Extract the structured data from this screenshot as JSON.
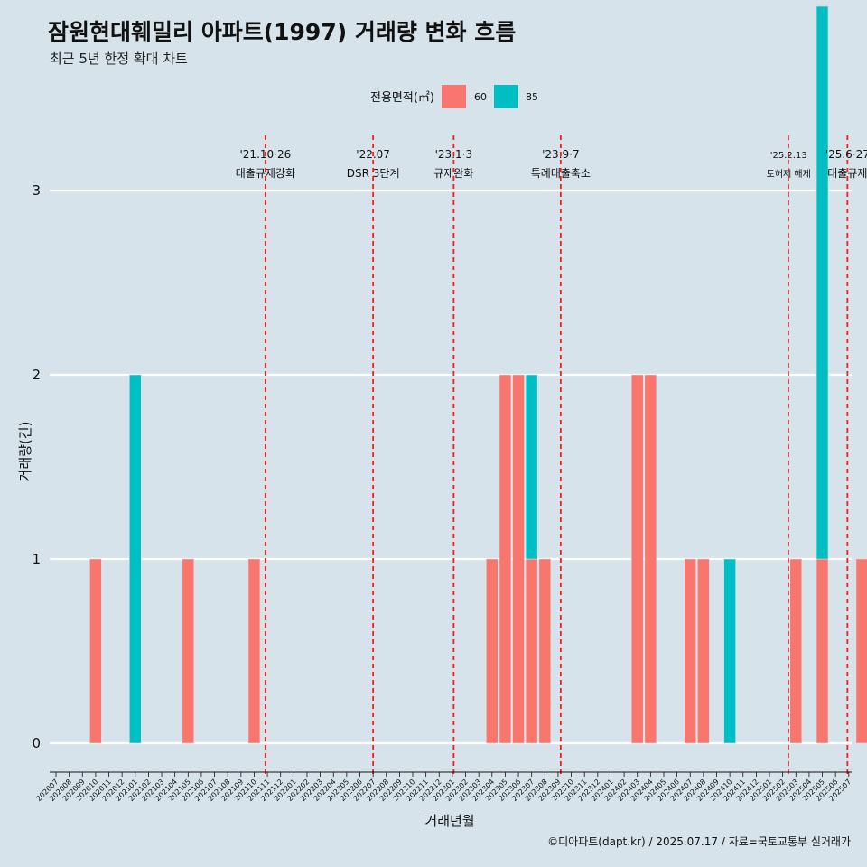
{
  "title": "잠원현대훼밀리 아파트(1997) 거래량 변화 흐름",
  "subtitle": "최근 5년 한정 확대 차트",
  "caption": "©디아파트(dapt.kr) / 2025.07.17 / 자료=국토교통부 실거래가",
  "legend": {
    "title": "전용면적(㎡)",
    "position": "top",
    "items": [
      {
        "label": "60",
        "color": "#f8766d"
      },
      {
        "label": "85",
        "color": "#00bfc4"
      }
    ]
  },
  "chart_data": {
    "type": "bar",
    "xlabel": "거래년월",
    "ylabel": "거래량(건)",
    "ylim": [
      0,
      3
    ],
    "yticks": [
      0,
      1,
      2,
      3
    ],
    "grid": "horizontal major lines only",
    "categories": [
      "202007",
      "202008",
      "202009",
      "202010",
      "202011",
      "202012",
      "202101",
      "202102",
      "202103",
      "202104",
      "202105",
      "202106",
      "202107",
      "202108",
      "202109",
      "202110",
      "202111",
      "202112",
      "202201",
      "202202",
      "202203",
      "202204",
      "202205",
      "202206",
      "202207",
      "202208",
      "202209",
      "202210",
      "202211",
      "202212",
      "202301",
      "202302",
      "202303",
      "202304",
      "202305",
      "202306",
      "202307",
      "202308",
      "202309",
      "202310",
      "202311",
      "202312",
      "202401",
      "202402",
      "202403",
      "202404",
      "202405",
      "202406",
      "202407",
      "202408",
      "202409",
      "202410",
      "202411",
      "202412",
      "202501",
      "202502",
      "202503",
      "202504",
      "202505",
      "202506",
      "202507"
    ],
    "bars": [
      {
        "month": "202009",
        "series": "60",
        "value": 1
      },
      {
        "month": "202012",
        "series": "85",
        "value": 2
      },
      {
        "month": "202104",
        "series": "60",
        "value": 1
      },
      {
        "month": "202109",
        "series": "60",
        "value": 1
      },
      {
        "month": "202303",
        "series": "60",
        "value": 1
      },
      {
        "month": "202304",
        "series": "60",
        "value": 2
      },
      {
        "month": "202305",
        "series": "60",
        "value": 2
      },
      {
        "month": "202306",
        "series": "60",
        "value": 1
      },
      {
        "month": "202306",
        "series": "85",
        "value": 1
      },
      {
        "month": "202307",
        "series": "60",
        "value": 1
      },
      {
        "month": "202402",
        "series": "60",
        "value": 2
      },
      {
        "month": "202403",
        "series": "60",
        "value": 2
      },
      {
        "month": "202406",
        "series": "60",
        "value": 1
      },
      {
        "month": "202407",
        "series": "60",
        "value": 1
      },
      {
        "month": "202409",
        "series": "85",
        "value": 1
      },
      {
        "month": "202502",
        "series": "60",
        "value": 1
      },
      {
        "month": "202504",
        "series": "60",
        "value": 1
      },
      {
        "month": "202504",
        "series": "85",
        "value": 3
      },
      {
        "month": "202507",
        "series": "60",
        "value": 1
      }
    ],
    "annotations": [
      {
        "x": 202110.85,
        "date": "'21.10·26",
        "label": "대출규제강화",
        "small": false
      },
      {
        "x": 202207,
        "date": "'22.07",
        "label": "DSR 3단계",
        "small": false
      },
      {
        "x": 202301.1,
        "date": "'23.1·3",
        "label": "규제완화",
        "small": false
      },
      {
        "x": 202309.2,
        "date": "'23.9·7",
        "label": "특례대출축소",
        "small": false
      },
      {
        "x": 202502.45,
        "date": "'25.2.13",
        "label": "토허제 해제",
        "small": true
      },
      {
        "x": 202506.9,
        "date": "'25.6·27",
        "label": "대출규제",
        "small": false
      }
    ]
  }
}
